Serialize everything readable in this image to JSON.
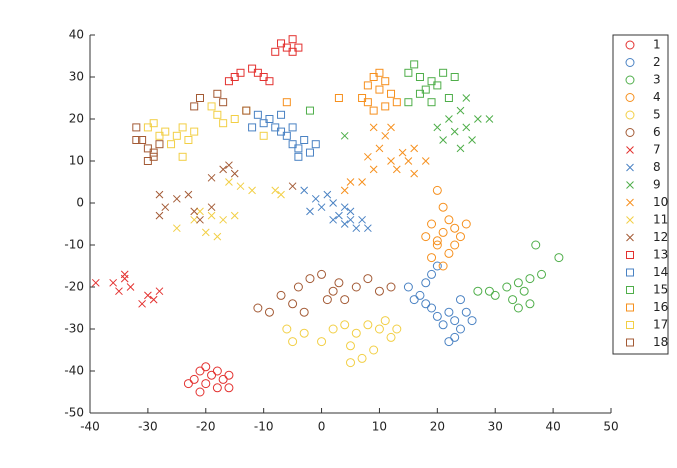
{
  "chart_data": {
    "type": "scatter",
    "xlim": [
      -40,
      50
    ],
    "ylim": [
      -50,
      40
    ],
    "xticks": [
      -40,
      -30,
      -20,
      -10,
      0,
      10,
      20,
      30,
      40,
      50
    ],
    "yticks": [
      -50,
      -40,
      -30,
      -20,
      -10,
      0,
      10,
      20,
      30,
      40
    ],
    "legend": "right",
    "grid": false,
    "series": [
      {
        "name": "1",
        "color": "#e3312f",
        "marker": "o",
        "x": [
          -22,
          -21,
          -20,
          -19,
          -18,
          -17,
          -16,
          -23,
          -21,
          -18,
          -16,
          -20
        ],
        "values": [
          -42,
          -40,
          -43,
          -41,
          -44,
          -42,
          -44,
          -43,
          -45,
          -40,
          -41,
          -39
        ]
      },
      {
        "name": "2",
        "color": "#4a82c3",
        "marker": "o",
        "x": [
          15,
          17,
          18,
          19,
          20,
          19,
          20,
          21,
          22,
          23,
          24,
          25,
          26,
          22,
          23,
          18,
          16,
          24
        ],
        "values": [
          -20,
          -22,
          -19,
          -17,
          -15,
          -25,
          -27,
          -29,
          -26,
          -28,
          -30,
          -26,
          -28,
          -33,
          -32,
          -24,
          -23,
          -23
        ]
      },
      {
        "name": "3",
        "color": "#4fae4a",
        "marker": "o",
        "x": [
          27,
          30,
          32,
          33,
          34,
          35,
          36,
          36,
          37,
          38,
          41,
          34,
          29
        ],
        "values": [
          -21,
          -22,
          -20,
          -23,
          -19,
          -21,
          -18,
          -24,
          -10,
          -17,
          -13,
          -25,
          -21
        ]
      },
      {
        "name": "4",
        "color": "#f6901e",
        "marker": "o",
        "x": [
          20,
          21,
          19,
          18,
          20,
          21,
          22,
          23,
          24,
          23,
          22,
          25,
          19,
          21,
          20
        ],
        "values": [
          3,
          -1,
          -5,
          -8,
          -9,
          -7,
          -4,
          -6,
          -8,
          -10,
          -12,
          -5,
          -13,
          -15,
          -10
        ]
      },
      {
        "name": "5",
        "color": "#f2cf45",
        "marker": "o",
        "x": [
          -6,
          -5,
          -3,
          0,
          4,
          5,
          6,
          7,
          9,
          10,
          11,
          13,
          5,
          2,
          8,
          12
        ],
        "values": [
          -30,
          -33,
          -31,
          -33,
          -29,
          -34,
          -31,
          -37,
          -35,
          -30,
          -28,
          -30,
          -38,
          -30,
          -29,
          -32
        ]
      },
      {
        "name": "6",
        "color": "#a35a35",
        "marker": "o",
        "x": [
          -11,
          -9,
          -7,
          -5,
          -4,
          -2,
          0,
          2,
          3,
          4,
          6,
          8,
          10,
          12,
          -3,
          1
        ],
        "values": [
          -25,
          -26,
          -22,
          -24,
          -20,
          -18,
          -17,
          -21,
          -19,
          -23,
          -20,
          -18,
          -21,
          -20,
          -26,
          -23
        ]
      },
      {
        "name": "7",
        "color": "#e3312f",
        "marker": "x",
        "x": [
          -36,
          -34,
          -33,
          -35,
          -30,
          -29,
          -31,
          -28,
          -39,
          -34
        ],
        "values": [
          -19,
          -17,
          -20,
          -21,
          -22,
          -23,
          -24,
          -21,
          -19,
          -18
        ]
      },
      {
        "name": "8",
        "color": "#4a82c3",
        "marker": "x",
        "x": [
          -3,
          -1,
          0,
          1,
          2,
          3,
          4,
          5,
          6,
          7,
          8,
          4,
          -2,
          5,
          2
        ],
        "values": [
          3,
          1,
          -1,
          2,
          0,
          -3,
          -5,
          -4,
          -6,
          -4,
          -6,
          -1,
          -2,
          -2,
          -4
        ]
      },
      {
        "name": "9",
        "color": "#4fae4a",
        "marker": "x",
        "x": [
          20,
          22,
          23,
          24,
          25,
          26,
          27,
          29,
          24,
          21,
          4,
          25
        ],
        "values": [
          18,
          20,
          17,
          22,
          18,
          15,
          20,
          20,
          13,
          15,
          16,
          25
        ]
      },
      {
        "name": "10",
        "color": "#f6901e",
        "marker": "x",
        "x": [
          8,
          9,
          10,
          11,
          12,
          13,
          14,
          15,
          16,
          9,
          12,
          16,
          5,
          4,
          7,
          18
        ],
        "values": [
          11,
          8,
          13,
          16,
          10,
          8,
          12,
          10,
          7,
          18,
          18,
          13,
          5,
          3,
          5,
          10
        ]
      },
      {
        "name": "11",
        "color": "#f2cf45",
        "marker": "x",
        "x": [
          -25,
          -22,
          -20,
          -19,
          -18,
          -17,
          -16,
          -14,
          -12,
          -8,
          -7,
          -21,
          -15
        ],
        "values": [
          -6,
          -4,
          -7,
          -3,
          -8,
          -4,
          5,
          4,
          3,
          3,
          2,
          -2,
          -3
        ]
      },
      {
        "name": "12",
        "color": "#a35a35",
        "marker": "x",
        "x": [
          -28,
          -27,
          -28,
          -25,
          -23,
          -22,
          -21,
          -19,
          -17,
          -16,
          -15,
          -5,
          -19
        ],
        "values": [
          2,
          -1,
          -3,
          1,
          2,
          -2,
          -4,
          6,
          8,
          9,
          7,
          4,
          -1
        ]
      },
      {
        "name": "13",
        "color": "#e3312f",
        "marker": "s",
        "x": [
          -6,
          -5,
          -4,
          -7,
          -5,
          -8,
          -15,
          -14,
          -11,
          -10,
          -12,
          -16,
          -9
        ],
        "values": [
          37,
          39,
          37,
          38,
          36,
          36,
          30,
          31,
          31,
          30,
          32,
          29,
          29
        ]
      },
      {
        "name": "14",
        "color": "#4a82c3",
        "marker": "s",
        "x": [
          -11,
          -9,
          -8,
          -7,
          -6,
          -5,
          -4,
          -3,
          -2,
          -1,
          -10,
          -7,
          -5,
          -4,
          -12
        ],
        "values": [
          21,
          20,
          18,
          17,
          16,
          14,
          13,
          15,
          12,
          14,
          19,
          21,
          18,
          11,
          18
        ]
      },
      {
        "name": "15",
        "color": "#4fae4a",
        "marker": "s",
        "x": [
          15,
          16,
          17,
          18,
          19,
          20,
          21,
          22,
          23,
          17,
          15,
          -2,
          19
        ],
        "values": [
          31,
          33,
          30,
          27,
          29,
          28,
          31,
          25,
          30,
          26,
          24,
          22,
          24
        ]
      },
      {
        "name": "16",
        "color": "#f6901e",
        "marker": "s",
        "x": [
          3,
          7,
          8,
          9,
          10,
          11,
          12,
          13,
          10,
          8,
          11,
          9,
          -6
        ],
        "values": [
          25,
          25,
          28,
          30,
          27,
          29,
          26,
          24,
          31,
          24,
          23,
          22,
          24
        ]
      },
      {
        "name": "17",
        "color": "#f2cf45",
        "marker": "s",
        "x": [
          -30,
          -29,
          -27,
          -25,
          -24,
          -23,
          -22,
          -26,
          -24,
          -19,
          -18,
          -17,
          -15,
          -13,
          -10,
          -28
        ],
        "values": [
          18,
          19,
          17,
          16,
          18,
          15,
          17,
          14,
          11,
          23,
          21,
          19,
          20,
          22,
          16,
          16
        ]
      },
      {
        "name": "18",
        "color": "#a35a35",
        "marker": "s",
        "x": [
          -32,
          -31,
          -30,
          -29,
          -30,
          -28,
          -32,
          -22,
          -21,
          -18,
          -17,
          -13,
          -29
        ],
        "values": [
          18,
          15,
          13,
          12,
          10,
          14,
          15,
          23,
          25,
          26,
          24,
          22,
          11
        ]
      }
    ]
  }
}
